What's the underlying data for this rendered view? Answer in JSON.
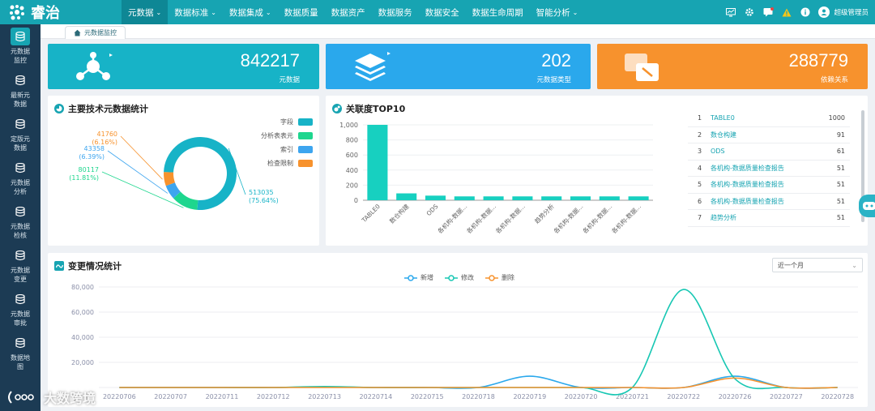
{
  "app": {
    "logo_text": "睿治"
  },
  "topnav": [
    {
      "label": "元数据",
      "has_dropdown": true,
      "active": true
    },
    {
      "label": "数据标准",
      "has_dropdown": true
    },
    {
      "label": "数据集成",
      "has_dropdown": true
    },
    {
      "label": "数据质量"
    },
    {
      "label": "数据资产"
    },
    {
      "label": "数据服务"
    },
    {
      "label": "数据安全"
    },
    {
      "label": "数据生命周期"
    },
    {
      "label": "智能分析",
      "has_dropdown": true
    }
  ],
  "topright": {
    "icons": [
      "monitor-icon",
      "gear-icon",
      "message-icon",
      "warning-icon",
      "info-icon"
    ],
    "user_name": "超级管理员"
  },
  "sidebar": [
    {
      "label": "元数据监控",
      "icon": "monitor-icon",
      "active": true
    },
    {
      "label": "最新元数据",
      "icon": "database-icon"
    },
    {
      "label": "定版元数据",
      "icon": "database-icon"
    },
    {
      "label": "元数据分析",
      "icon": "analysis-icon"
    },
    {
      "label": "元数据检核",
      "icon": "check-icon"
    },
    {
      "label": "元数据变更",
      "icon": "change-icon"
    },
    {
      "label": "元数据审批",
      "icon": "approve-icon"
    },
    {
      "label": "数据地图",
      "icon": "map-icon"
    }
  ],
  "tab": {
    "label": "元数据监控"
  },
  "cards": [
    {
      "value": "842217",
      "label": "元数据",
      "color": "#17b3c7",
      "icon": "network-icon"
    },
    {
      "value": "202",
      "label": "元数据类型",
      "color": "#2aa8ec",
      "icon": "layers-icon"
    },
    {
      "value": "288779",
      "label": "依赖关系",
      "color": "#f7922d",
      "icon": "dependency-icon"
    }
  ],
  "panels": {
    "tech": {
      "title": "主要技术元数据统计"
    },
    "top10": {
      "title": "关联度TOP10"
    },
    "change": {
      "title": "变更情况统计",
      "select_value": "近一个月"
    }
  },
  "chart_data": [
    {
      "type": "pie",
      "title": "主要技术元数据统计",
      "donut": true,
      "legend_position": "right",
      "slices": [
        {
          "name": "字段",
          "value": 513035,
          "label_value": "513035",
          "label_pct": "(75.64%)",
          "color": "#17b3c7"
        },
        {
          "name": "分析表表元",
          "value": 80117,
          "label_value": "80117",
          "label_pct": "(11.81%)",
          "color": "#1ed68e"
        },
        {
          "name": "索引",
          "value": 43358,
          "label_value": "43358",
          "label_pct": "(6.39%)",
          "color": "#3da5ef"
        },
        {
          "name": "检查限制",
          "value": 41760,
          "label_value": "41760",
          "label_pct": "(6.16%)",
          "color": "#f7922d"
        }
      ]
    },
    {
      "type": "bar",
      "title": "关联度TOP10",
      "categories": [
        "TABLE0",
        "数仓构建",
        "ODS",
        "各机构-数据...",
        "各机构-数据...",
        "各机构-数据...",
        "趋势分析",
        "各机构-数据...",
        "各机构-数据...",
        "各机构-数据..."
      ],
      "values": [
        1000,
        91,
        61,
        51,
        51,
        51,
        51,
        51,
        51,
        51
      ],
      "ylim": [
        0,
        1000
      ],
      "yticks": [
        "0",
        "200",
        "400",
        "600",
        "800",
        "1,000"
      ],
      "color": "#17d0c0",
      "list": [
        {
          "rank": "1",
          "name": "TABLE0",
          "value": "1000"
        },
        {
          "rank": "2",
          "name": "数仓构建",
          "value": "91"
        },
        {
          "rank": "3",
          "name": "ODS",
          "value": "61"
        },
        {
          "rank": "4",
          "name": "各机构-数据质量检查报告",
          "value": "51"
        },
        {
          "rank": "5",
          "name": "各机构-数据质量检查报告",
          "value": "51"
        },
        {
          "rank": "6",
          "name": "各机构-数据质量检查报告",
          "value": "51"
        },
        {
          "rank": "7",
          "name": "趋势分析",
          "value": "51"
        }
      ]
    },
    {
      "type": "line",
      "title": "变更情况统计",
      "smooth": true,
      "legend_position": "top",
      "categories": [
        "20220706",
        "20220707",
        "20220711",
        "20220712",
        "20220713",
        "20220714",
        "20220715",
        "20220718",
        "20220719",
        "20220720",
        "20220721",
        "20220722",
        "20220726",
        "20220727",
        "20220728"
      ],
      "ylim": [
        0,
        80000
      ],
      "yticks": [
        "0",
        "20,000",
        "40,000",
        "60,000",
        "80,000"
      ],
      "series": [
        {
          "name": "新增",
          "color": "#2aa8ec",
          "values": [
            0,
            0,
            0,
            0,
            500,
            0,
            0,
            0,
            9000,
            0,
            0,
            0,
            9000,
            0,
            0
          ]
        },
        {
          "name": "修改",
          "color": "#17c7b3",
          "values": [
            0,
            0,
            0,
            0,
            800,
            0,
            0,
            0,
            0,
            0,
            0,
            78000,
            7000,
            0,
            0
          ]
        },
        {
          "name": "删除",
          "color": "#f7922d",
          "values": [
            0,
            0,
            0,
            0,
            0,
            0,
            0,
            0,
            0,
            0,
            0,
            0,
            7500,
            0,
            0
          ]
        }
      ]
    }
  ],
  "watermark": {
    "text": "大数跨境"
  }
}
